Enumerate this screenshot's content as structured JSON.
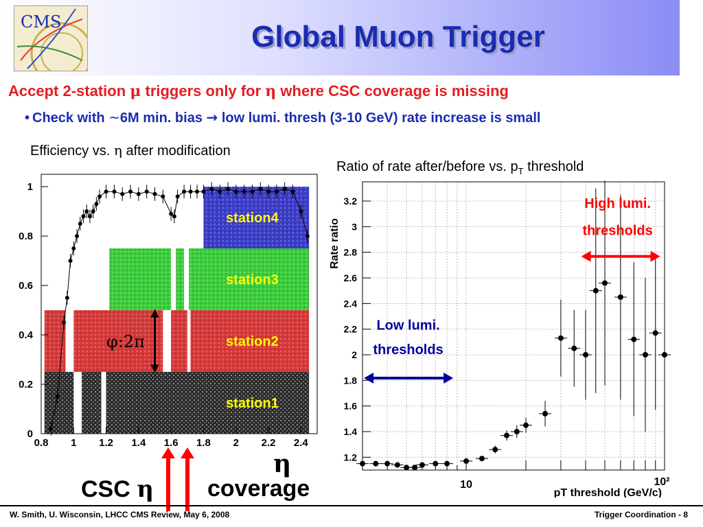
{
  "header": {
    "title": "Global Muon Trigger",
    "logo_text": "CMS"
  },
  "headline": {
    "prefix": "Accept 2-station ",
    "mu": "μ",
    "middle": " triggers only for ",
    "eta": "η",
    "suffix": " where CSC coverage is missing"
  },
  "bullet": {
    "prefix": "Check with ",
    "tilde": "~",
    "middle": "6M min. bias ",
    "arrow": "→",
    "suffix": " low lumi. thresh (3-10 GeV) rate increase is small"
  },
  "captions": {
    "left_prefix": "Efficiency vs. ",
    "left_eta": "η",
    "left_suffix": " after modification",
    "right_prefix": "Ratio of rate after/before vs. p",
    "right_sub": "T",
    "right_suffix": " threshold"
  },
  "annotations": {
    "phi_label": "φ:2π",
    "csc": "CSC ",
    "csc_eta": "η",
    "eta_big": "η",
    "coverage": "coverage",
    "high_lumi_1": "High lumi.",
    "high_lumi_2": "thresholds",
    "low_lumi_1": "Low lumi.",
    "low_lumi_2": "thresholds"
  },
  "footer": {
    "left": "W. Smith, U. Wisconsin,  LHCC CMS Review, May 6, 2008",
    "right": "Trigger Coordination -  8"
  },
  "colors": {
    "title": "#1c2bb0",
    "headline": "#e41e23",
    "bullet": "#1c2bb0",
    "station4": "#3e3fc8",
    "station3": "#3ccd3c",
    "station2": "#d63a3a",
    "station1": "#3a3a3a",
    "station_label": "#ffff00",
    "high_arrow": "#ff0000",
    "low_arrow": "#0000a0"
  },
  "chart_data": [
    {
      "type": "scatter",
      "title": "Efficiency vs. η after modification",
      "xlabel": "",
      "ylabel": "",
      "xlim": [
        0.8,
        2.5
      ],
      "ylim": [
        0,
        1.05
      ],
      "x_ticks": [
        "0.8",
        "1",
        "1.2",
        "1.4",
        "1.6",
        "1.8",
        "2",
        "2.2",
        "2.4"
      ],
      "y_ticks": [
        "0",
        "0.2",
        "0.4",
        "0.6",
        "0.8",
        "1"
      ],
      "regions": [
        {
          "name": "station1",
          "eta_ranges": [
            [
              0.82,
              2.45
            ]
          ],
          "eff_range": [
            0,
            0.25
          ]
        },
        {
          "name": "station2",
          "eta_ranges": [
            [
              0.82,
              2.45
            ]
          ],
          "eff_range": [
            0.25,
            0.5
          ]
        },
        {
          "name": "station3",
          "eta_ranges": [
            [
              1.2,
              2.45
            ]
          ],
          "eff_range": [
            0.5,
            0.75
          ]
        },
        {
          "name": "station4",
          "eta_ranges": [
            [
              1.8,
              2.45
            ]
          ],
          "eff_range": [
            0.75,
            1.0
          ]
        }
      ],
      "series": [
        {
          "x": [
            0.86,
            0.9,
            0.94,
            0.96,
            0.98,
            1.0,
            1.02,
            1.04,
            1.06,
            1.08,
            1.1,
            1.12,
            1.14,
            1.16,
            1.2,
            1.25,
            1.3,
            1.35,
            1.4,
            1.45,
            1.5,
            1.55,
            1.6,
            1.62,
            1.64,
            1.68,
            1.72,
            1.76,
            1.8,
            1.85,
            1.9,
            1.95,
            2.0,
            2.05,
            2.1,
            2.15,
            2.2,
            2.25,
            2.3,
            2.35,
            2.4,
            2.44
          ],
          "y": [
            0.02,
            0.15,
            0.45,
            0.55,
            0.7,
            0.75,
            0.8,
            0.85,
            0.88,
            0.9,
            0.88,
            0.9,
            0.93,
            0.96,
            0.98,
            0.98,
            0.97,
            0.98,
            0.97,
            0.98,
            0.97,
            0.96,
            0.89,
            0.88,
            0.96,
            0.98,
            0.98,
            0.98,
            0.98,
            0.99,
            0.98,
            0.99,
            0.98,
            0.98,
            0.98,
            0.99,
            0.98,
            0.98,
            0.99,
            0.98,
            0.9,
            0.8
          ]
        }
      ]
    },
    {
      "type": "scatter",
      "title": "Ratio of rate after/before vs. pT threshold",
      "xlabel": "pT threshold (GeV/c)",
      "ylabel": "Rate ratio",
      "x_log": true,
      "xlim": [
        3,
        100
      ],
      "ylim": [
        1.1,
        3.35
      ],
      "x_ticks": [
        "10",
        "10²"
      ],
      "y_ticks": [
        "1.2",
        "1.4",
        "1.6",
        "1.8",
        "2",
        "2.2",
        "2.4",
        "2.6",
        "2.8",
        "3",
        "3.2"
      ],
      "series": [
        {
          "x": [
            3,
            3.5,
            4,
            4.5,
            5,
            5.5,
            6,
            7,
            8,
            10,
            12,
            14,
            16,
            18,
            20,
            25,
            30,
            35,
            40,
            45,
            50,
            60,
            70,
            80,
            90,
            100
          ],
          "y": [
            1.15,
            1.15,
            1.15,
            1.14,
            1.12,
            1.12,
            1.14,
            1.15,
            1.15,
            1.17,
            1.19,
            1.26,
            1.37,
            1.4,
            1.45,
            1.54,
            2.13,
            2.05,
            2.0,
            2.5,
            2.56,
            2.45,
            2.12,
            2.0,
            2.17,
            2.0
          ],
          "err": [
            0.01,
            0.01,
            0.01,
            0.01,
            0.01,
            0.01,
            0.01,
            0.01,
            0.01,
            0.01,
            0.02,
            0.03,
            0.04,
            0.05,
            0.06,
            0.1,
            0.3,
            0.3,
            0.35,
            0.8,
            0.8,
            0.8,
            0.6,
            0.6,
            0.6,
            0.6
          ]
        }
      ]
    }
  ]
}
